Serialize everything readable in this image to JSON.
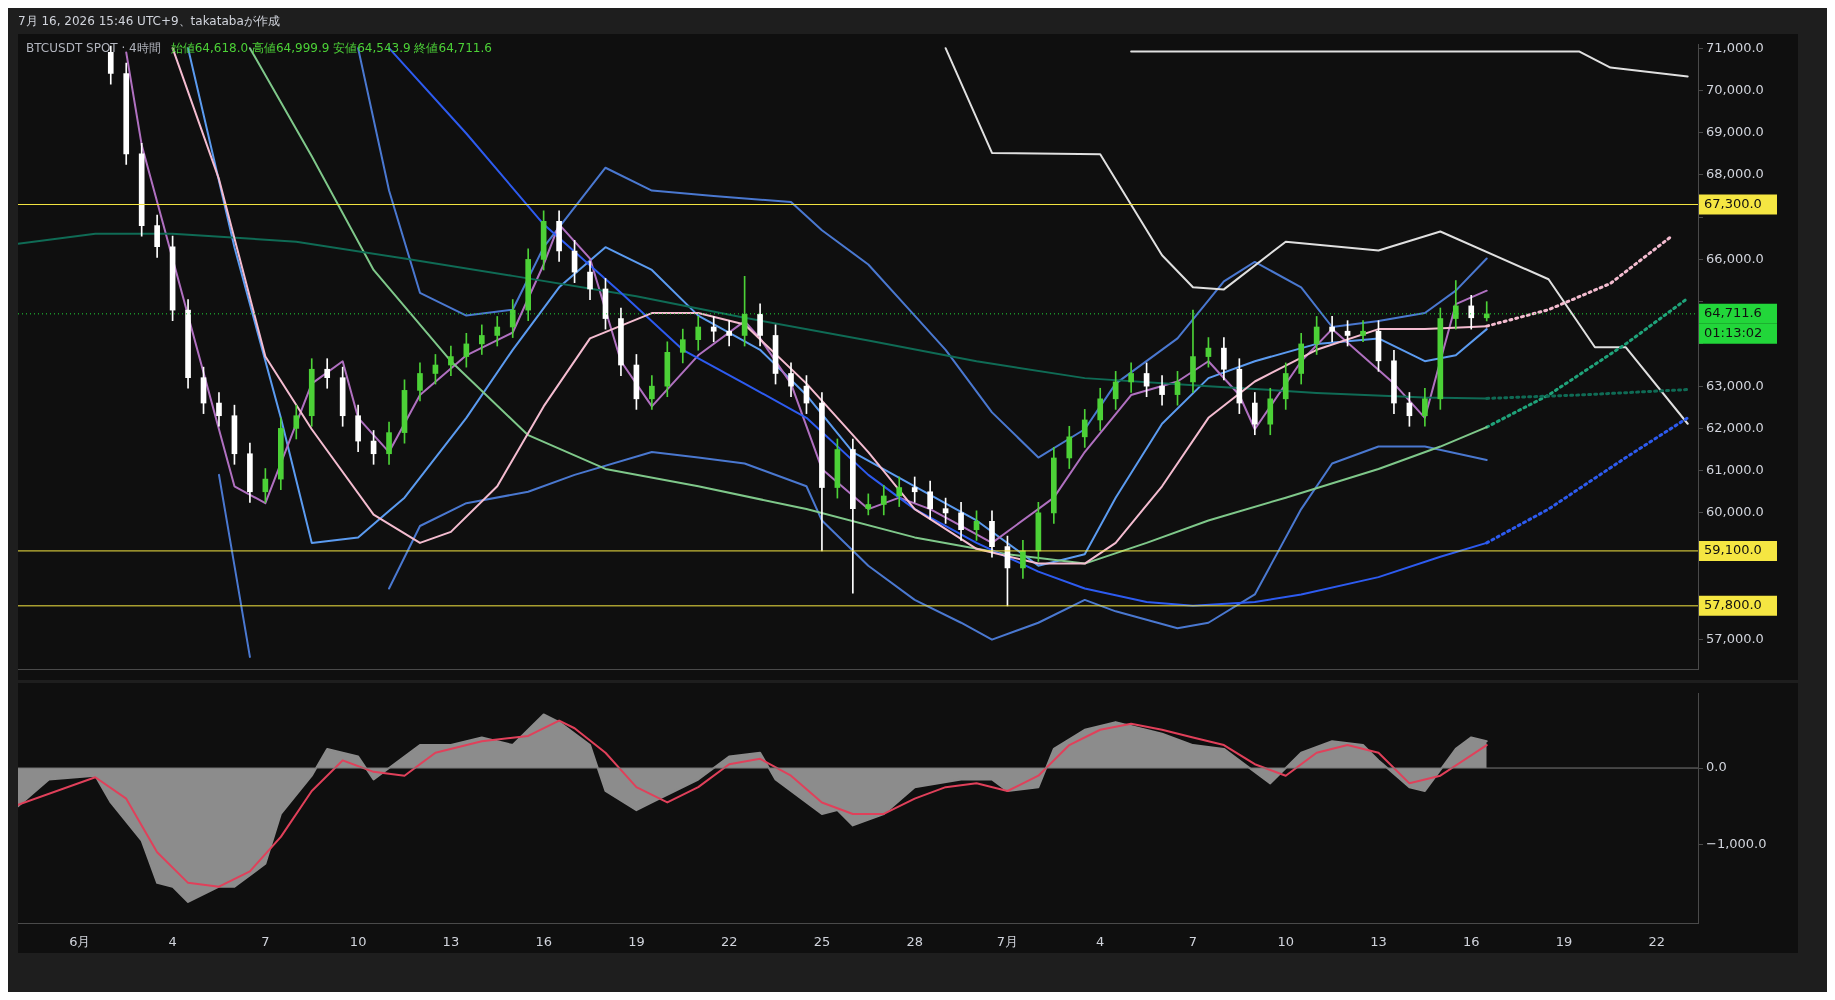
{
  "chart_data": [
    {
      "type": "candlestick",
      "title": "BTCUSDT SPOT · 4時間",
      "subtitle": "始値64,618.0 高値64,999.9 安値64,543.9 終値64,711.6",
      "annotations": [
        "7月 16, 2026 15:46 UTC+9、takatabaが作成",
        "01:13:02"
      ],
      "x": [
        "2026-06-02T00:00",
        "2026-06-02T12:00",
        "2026-06-03T00:00",
        "2026-06-03T12:00",
        "2026-06-04T00:00",
        "2026-06-04T12:00",
        "2026-06-05T00:00",
        "2026-06-05T12:00",
        "2026-06-06T00:00",
        "2026-06-06T12:00",
        "2026-06-07T00:00",
        "2026-06-07T12:00",
        "2026-06-08T00:00",
        "2026-06-08T12:00",
        "2026-06-09T00:00",
        "2026-06-09T12:00",
        "2026-06-10T00:00",
        "2026-06-10T12:00",
        "2026-06-11T00:00",
        "2026-06-11T12:00",
        "2026-06-12T00:00",
        "2026-06-12T12:00",
        "2026-06-13T00:00",
        "2026-06-13T12:00",
        "2026-06-14T00:00",
        "2026-06-14T12:00",
        "2026-06-15T00:00",
        "2026-06-15T12:00",
        "2026-06-16T00:00",
        "2026-06-16T12:00",
        "2026-06-17T00:00",
        "2026-06-17T12:00",
        "2026-06-18T00:00",
        "2026-06-18T12:00",
        "2026-06-19T00:00",
        "2026-06-19T12:00",
        "2026-06-20T00:00",
        "2026-06-20T12:00",
        "2026-06-21T00:00",
        "2026-06-21T12:00",
        "2026-06-22T00:00",
        "2026-06-22T12:00",
        "2026-06-23T00:00",
        "2026-06-23T12:00",
        "2026-06-24T00:00",
        "2026-06-24T12:00",
        "2026-06-25T00:00",
        "2026-06-25T12:00",
        "2026-06-26T00:00",
        "2026-06-26T12:00",
        "2026-06-27T00:00",
        "2026-06-27T12:00",
        "2026-06-28T00:00",
        "2026-06-28T12:00",
        "2026-06-29T00:00",
        "2026-06-29T12:00",
        "2026-06-30T00:00",
        "2026-06-30T12:00",
        "2026-07-01T00:00",
        "2026-07-01T12:00",
        "2026-07-02T00:00",
        "2026-07-02T12:00",
        "2026-07-03T00:00",
        "2026-07-03T12:00",
        "2026-07-04T00:00",
        "2026-07-04T12:00",
        "2026-07-05T00:00",
        "2026-07-05T12:00",
        "2026-07-06T00:00",
        "2026-07-06T12:00",
        "2026-07-07T00:00",
        "2026-07-07T12:00",
        "2026-07-08T00:00",
        "2026-07-08T12:00",
        "2026-07-09T00:00",
        "2026-07-09T12:00",
        "2026-07-10T00:00",
        "2026-07-10T12:00",
        "2026-07-11T00:00",
        "2026-07-11T12:00",
        "2026-07-12T00:00",
        "2026-07-12T12:00",
        "2026-07-13T00:00",
        "2026-07-13T12:00",
        "2026-07-14T00:00",
        "2026-07-14T12:00",
        "2026-07-15T00:00",
        "2026-07-15T12:00",
        "2026-07-16T00:00",
        "2026-07-16T12:00"
      ],
      "ohlc": [
        [
          70900,
          71050,
          70150,
          70400
        ],
        [
          70400,
          70650,
          68250,
          68500
        ],
        [
          68500,
          68750,
          66550,
          66800
        ],
        [
          66800,
          67050,
          66050,
          66300
        ],
        [
          66300,
          66550,
          64550,
          64800
        ],
        [
          64800,
          65050,
          62950,
          63200
        ],
        [
          63200,
          63450,
          62350,
          62600
        ],
        [
          62600,
          62850,
          62050,
          62300
        ],
        [
          62300,
          62550,
          61150,
          61400
        ],
        [
          61400,
          61650,
          60250,
          60500
        ],
        [
          60500,
          61050,
          60250,
          60800
        ],
        [
          60800,
          62250,
          60550,
          62000
        ],
        [
          62000,
          62550,
          61750,
          62300
        ],
        [
          62300,
          63650,
          62050,
          63400
        ],
        [
          63400,
          63650,
          62950,
          63200
        ],
        [
          63200,
          63450,
          62050,
          62300
        ],
        [
          62300,
          62550,
          61450,
          61700
        ],
        [
          61700,
          61950,
          61150,
          61400
        ],
        [
          61400,
          62150,
          61150,
          61900
        ],
        [
          61900,
          63150,
          61650,
          62900
        ],
        [
          62900,
          63550,
          62650,
          63300
        ],
        [
          63300,
          63750,
          63050,
          63500
        ],
        [
          63500,
          63950,
          63250,
          63700
        ],
        [
          63700,
          64250,
          63450,
          64000
        ],
        [
          64000,
          64450,
          63750,
          64200
        ],
        [
          64200,
          64650,
          63950,
          64400
        ],
        [
          64400,
          65050,
          64150,
          64800
        ],
        [
          64800,
          66250,
          64550,
          66000
        ],
        [
          66000,
          67150,
          65750,
          66900
        ],
        [
          66900,
          67150,
          65950,
          66200
        ],
        [
          66200,
          66450,
          65450,
          65700
        ],
        [
          65700,
          65950,
          65050,
          65300
        ],
        [
          65300,
          65550,
          64350,
          64600
        ],
        [
          64600,
          64850,
          63250,
          63500
        ],
        [
          63500,
          63750,
          62450,
          62700
        ],
        [
          62700,
          63250,
          62450,
          63000
        ],
        [
          63000,
          64050,
          62750,
          63800
        ],
        [
          63800,
          64350,
          63550,
          64100
        ],
        [
          64100,
          64650,
          63850,
          64400
        ],
        [
          64400,
          64650,
          64050,
          64300
        ],
        [
          64300,
          64550,
          63950,
          64200
        ],
        [
          64200,
          65600,
          63950,
          64700
        ],
        [
          64700,
          64950,
          63950,
          64200
        ],
        [
          64200,
          64450,
          63050,
          63300
        ],
        [
          63300,
          63550,
          62750,
          63000
        ],
        [
          63000,
          63250,
          62350,
          62600
        ],
        [
          62600,
          62850,
          59100,
          60600
        ],
        [
          60600,
          61750,
          60350,
          61500
        ],
        [
          61500,
          61750,
          58100,
          60100
        ],
        [
          60100,
          60450,
          59950,
          60200
        ],
        [
          60200,
          60650,
          59950,
          60400
        ],
        [
          60400,
          60850,
          60150,
          60600
        ],
        [
          60600,
          60850,
          60250,
          60500
        ],
        [
          60500,
          60750,
          59850,
          60100
        ],
        [
          60100,
          60350,
          59750,
          60000
        ],
        [
          60000,
          60250,
          59350,
          59600
        ],
        [
          59600,
          60050,
          59350,
          59800
        ],
        [
          59800,
          60050,
          58950,
          59200
        ],
        [
          59200,
          59450,
          57800,
          58700
        ],
        [
          58700,
          59350,
          58450,
          59100
        ],
        [
          59100,
          60250,
          58850,
          60000
        ],
        [
          60000,
          61550,
          59750,
          61300
        ],
        [
          61300,
          62050,
          61050,
          61800
        ],
        [
          61800,
          62450,
          61550,
          62200
        ],
        [
          62200,
          62950,
          61950,
          62700
        ],
        [
          62700,
          63350,
          62450,
          63100
        ],
        [
          63100,
          63550,
          62850,
          63300
        ],
        [
          63300,
          63550,
          62750,
          63000
        ],
        [
          63000,
          63250,
          62550,
          62800
        ],
        [
          62800,
          63350,
          62550,
          63100
        ],
        [
          63100,
          64800,
          62850,
          63700
        ],
        [
          63700,
          64150,
          63450,
          63900
        ],
        [
          63900,
          64150,
          63150,
          63400
        ],
        [
          63400,
          63650,
          62350,
          62600
        ],
        [
          62600,
          62850,
          61850,
          62100
        ],
        [
          62100,
          62950,
          61850,
          62700
        ],
        [
          62700,
          63550,
          62450,
          63300
        ],
        [
          63300,
          64250,
          63050,
          64000
        ],
        [
          64000,
          64650,
          63750,
          64400
        ],
        [
          64400,
          64650,
          64050,
          64300
        ],
        [
          64300,
          64550,
          63950,
          64200
        ],
        [
          64200,
          64550,
          64050,
          64300
        ],
        [
          64300,
          64550,
          63350,
          63600
        ],
        [
          63600,
          63850,
          62350,
          62600
        ],
        [
          62600,
          62850,
          62050,
          62300
        ],
        [
          62300,
          62950,
          62050,
          62700
        ],
        [
          62700,
          64850,
          62450,
          64600
        ],
        [
          64600,
          65500,
          64350,
          64900
        ],
        [
          64900,
          65150,
          64350,
          64618
        ],
        [
          64618,
          64999.9,
          64543.9,
          64711.6
        ]
      ],
      "colors": [
        "#ffffff",
        "#ffffff",
        "#ffffff",
        "#ffffff",
        "#ffffff",
        "#ffffff",
        "#ffffff",
        "#ffffff",
        "#ffffff",
        "#ffffff",
        "#4cd137",
        "#4cd137",
        "#4cd137",
        "#4cd137",
        "#ffffff",
        "#ffffff",
        "#ffffff",
        "#ffffff",
        "#4cd137",
        "#4cd137",
        "#4cd137",
        "#4cd137",
        "#4cd137",
        "#4cd137",
        "#4cd137",
        "#4cd137",
        "#4cd137",
        "#4cd137",
        "#4cd137",
        "#ffffff",
        "#ffffff",
        "#ffffff",
        "#ffffff",
        "#ffffff",
        "#ffffff",
        "#4cd137",
        "#4cd137",
        "#4cd137",
        "#4cd137",
        "#ffffff",
        "#ffffff",
        "#4cd137",
        "#ffffff",
        "#ffffff",
        "#ffffff",
        "#ffffff",
        "#ffffff",
        "#4cd137",
        "#ffffff",
        "#4cd137",
        "#4cd137",
        "#4cd137",
        "#ffffff",
        "#ffffff",
        "#ffffff",
        "#ffffff",
        "#4cd137",
        "#ffffff",
        "#ffffff",
        "#4cd137",
        "#4cd137",
        "#4cd137",
        "#4cd137",
        "#4cd137",
        "#4cd137",
        "#4cd137",
        "#4cd137",
        "#ffffff",
        "#ffffff",
        "#4cd137",
        "#4cd137",
        "#4cd137",
        "#ffffff",
        "#ffffff",
        "#ffffff",
        "#4cd137",
        "#4cd137",
        "#4cd137",
        "#4cd137",
        "#ffffff",
        "#ffffff",
        "#4cd137",
        "#ffffff",
        "#ffffff",
        "#ffffff",
        "#4cd137",
        "#4cd137",
        "#4cd137",
        "#ffffff",
        "#4cd137"
      ],
      "series": [
        {
          "type": "line",
          "color": "#f4bcd0",
          "x": [
            "2026-06-04T00:00",
            "2026-06-05T12:00",
            "2026-06-07T00:00",
            "2026-06-08T12:00",
            "2026-06-10T12:00",
            "2026-06-12T00:00",
            "2026-06-13T00:00",
            "2026-06-14T12:00",
            "2026-06-16T00:00",
            "2026-06-17T12:00",
            "2026-06-19T12:00",
            "2026-06-21T00:00",
            "2026-06-22T12:00",
            "2026-06-24T12:00",
            "2026-06-26T12:00",
            "2026-06-28T00:00",
            "2026-06-30T00:00",
            "2026-07-02T00:00",
            "2026-07-03T12:00",
            "2026-07-04T12:00",
            "2026-07-06T00:00",
            "2026-07-07T12:00",
            "2026-07-09T00:00",
            "2026-07-11T00:00",
            "2026-07-13T00:00",
            "2026-07-14T12:00",
            "2026-07-16T00:00",
            "2026-07-16T12:00"
          ],
          "values": [
            71000,
            67900,
            63700,
            61980,
            59960,
            59290,
            59550,
            60630,
            62520,
            64130,
            64730,
            64730,
            64460,
            63060,
            61440,
            60090,
            59150,
            58800,
            58800,
            59290,
            60630,
            62250,
            63110,
            63860,
            64350,
            64350,
            64400,
            64420
          ]
        },
        {
          "type": "line",
          "color": "#f4bcd0",
          "line_style": "dotted",
          "x": [
            "2026-07-16T12:00",
            "2026-07-18T12:00",
            "2026-07-20T12:00",
            "2026-07-22T12:00"
          ],
          "values": [
            64420,
            64810,
            65430,
            66560
          ]
        },
        {
          "type": "line",
          "color": "#2d5bf0",
          "x": [
            "2026-06-11T00:00",
            "2026-06-13T12:00",
            "2026-06-16T00:00",
            "2026-06-18T12:00",
            "2026-06-20T12:00",
            "2026-06-22T12:00",
            "2026-06-24T12:00",
            "2026-06-26T12:00",
            "2026-06-28T00:00",
            "2026-06-30T00:00",
            "2026-07-02T00:00",
            "2026-07-03T12:00",
            "2026-07-05T12:00",
            "2026-07-07T00:00",
            "2026-07-09T00:00",
            "2026-07-10T12:00",
            "2026-07-13T00:00",
            "2026-07-15T00:00",
            "2026-07-16T12:00"
          ],
          "values": [
            71000,
            68980,
            66830,
            65210,
            63860,
            63060,
            62250,
            60900,
            60090,
            59290,
            58610,
            58210,
            57890,
            57800,
            57890,
            58070,
            58480,
            58960,
            59290
          ]
        },
        {
          "type": "line",
          "color": "#2d5bf0",
          "line_style": "dotted",
          "x": [
            "2026-07-16T12:00",
            "2026-07-18T12:00",
            "2026-07-21T00:00",
            "2026-07-23T00:00"
          ],
          "values": [
            59290,
            60090,
            61310,
            62250
          ]
        },
        {
          "type": "line",
          "color": "#0f6b55",
          "x": [
            "2026-05-30T00:00",
            "2026-06-01T12:00",
            "2026-06-04T00:00",
            "2026-06-08T00:00",
            "2026-06-11T12:00",
            "2026-06-15T00:00",
            "2026-06-19T00:00",
            "2026-06-22T12:00",
            "2026-06-26T12:00",
            "2026-06-30T00:00",
            "2026-07-03T12:00",
            "2026-07-07T12:00",
            "2026-07-11T00:00",
            "2026-07-14T12:00",
            "2026-07-16T12:00"
          ],
          "values": [
            66370,
            66610,
            66610,
            66420,
            66020,
            65610,
            65130,
            64620,
            64080,
            63590,
            63190,
            63000,
            62840,
            62730,
            62710
          ]
        },
        {
          "type": "line",
          "color": "#0f6b55",
          "line_style": "dotted",
          "x": [
            "2026-07-16T12:00",
            "2026-07-19T12:00",
            "2026-07-23T00:00"
          ],
          "values": [
            62710,
            62790,
            62920
          ]
        },
        {
          "type": "line",
          "color": "#7fc88a",
          "x": [
            "2026-06-06T12:00",
            "2026-06-08T12:00",
            "2026-06-10T12:00",
            "2026-06-13T00:00",
            "2026-06-15T12:00",
            "2026-06-18T00:00",
            "2026-06-21T00:00",
            "2026-06-24T12:00",
            "2026-06-28T00:00",
            "2026-07-01T00:00",
            "2026-07-03T12:00",
            "2026-07-05T12:00",
            "2026-07-07T12:00",
            "2026-07-10T00:00",
            "2026-07-13T00:00",
            "2026-07-15T00:00",
            "2026-07-16T12:00"
          ],
          "values": [
            71000,
            68440,
            65750,
            63590,
            61840,
            61040,
            60630,
            60090,
            59420,
            59020,
            58800,
            59290,
            59820,
            60360,
            61040,
            61570,
            62030
          ]
        },
        {
          "type": "line",
          "color": "#1fa37a",
          "line_style": "dotted",
          "x": [
            "2026-07-16T12:00",
            "2026-07-18T12:00",
            "2026-07-21T00:00",
            "2026-07-23T00:00"
          ],
          "values": [
            62030,
            62790,
            64000,
            65080
          ]
        },
        {
          "type": "line",
          "color": "#e0e0e0",
          "x": [
            "2026-06-29T00:00",
            "2026-06-30T12:00",
            "2026-07-04T00:00",
            "2026-07-06T00:00",
            "2026-07-07T00:00",
            "2026-07-08T00:00",
            "2026-07-10T00:00",
            "2026-07-13T00:00",
            "2026-07-15T00:00",
            "2026-07-18T12:00",
            "2026-07-20T00:00",
            "2026-07-21T00:00",
            "2026-07-23T00:00"
          ],
          "values": [
            71000,
            68520,
            68490,
            66100,
            65340,
            65290,
            66420,
            66210,
            66660,
            65530,
            63920,
            63920,
            62110
          ]
        },
        {
          "type": "line",
          "color": "#e0e0e0",
          "x": [
            "2026-07-05T00:00",
            "2026-07-19T12:00",
            "2026-07-20T12:00",
            "2026-07-23T00:00"
          ],
          "values": [
            70920,
            70920,
            70540,
            70330
          ]
        },
        {
          "type": "line",
          "color": "#b070c0",
          "x": [
            "2026-06-02T12:00",
            "2026-06-03T00:00",
            "2026-06-06T00:00",
            "2026-06-07T00:00",
            "2026-06-08T12:00",
            "2026-06-09T12:00",
            "2026-06-10T00:00",
            "2026-06-11T00:00",
            "2026-06-12T00:00",
            "2026-06-13T12:00",
            "2026-06-15T00:00",
            "2026-06-16T00:00",
            "2026-06-16T12:00",
            "2026-06-17T12:00",
            "2026-06-18T12:00",
            "2026-06-19T12:00",
            "2026-06-21T00:00",
            "2026-06-22T12:00",
            "2026-06-23T00:00",
            "2026-06-24T00:00",
            "2026-06-25T00:00",
            "2026-06-26T12:00",
            "2026-06-27T12:00",
            "2026-06-28T12:00",
            "2026-06-29T12:00",
            "2026-06-30T12:00",
            "2026-07-02T12:00",
            "2026-07-03T12:00",
            "2026-07-05T00:00",
            "2026-07-06T12:00",
            "2026-07-07T12:00",
            "2026-07-08T12:00",
            "2026-07-09T00:00",
            "2026-07-10T12:00",
            "2026-07-11T12:00",
            "2026-07-13T12:00",
            "2026-07-14T12:00",
            "2026-07-15T12:00",
            "2026-07-16T12:00"
          ],
          "values": [
            70900,
            68710,
            60630,
            60230,
            63060,
            63590,
            62250,
            61440,
            62790,
            63730,
            64270,
            65880,
            66830,
            66020,
            63590,
            62520,
            63730,
            64540,
            64130,
            63060,
            61040,
            60090,
            60360,
            60090,
            59690,
            59290,
            60360,
            61440,
            62790,
            63110,
            63590,
            62790,
            61980,
            63590,
            64350,
            63060,
            62250,
            64940,
            65260
          ]
        },
        {
          "type": "line",
          "color": "#5b9bf0",
          "x": [
            "2026-06-04T12:00",
            "2026-06-06T00:00",
            "2026-06-07T12:00",
            "2026-06-08T12:00",
            "2026-06-10T00:00",
            "2026-06-11T12:00",
            "2026-06-13T12:00",
            "2026-06-15T00:00",
            "2026-06-16T12:00",
            "2026-06-18T00:00",
            "2026-06-19T12:00",
            "2026-06-21T00:00",
            "2026-06-23T00:00",
            "2026-06-24T12:00",
            "2026-06-26T00:00",
            "2026-06-28T00:00",
            "2026-06-30T00:00",
            "2026-07-02T00:00",
            "2026-07-03T12:00",
            "2026-07-04T12:00",
            "2026-07-06T00:00",
            "2026-07-07T12:00",
            "2026-07-09T00:00",
            "2026-07-11T00:00",
            "2026-07-13T00:00",
            "2026-07-14T12:00",
            "2026-07-15T12:00",
            "2026-07-16T12:00"
          ],
          "values": [
            71000,
            66290,
            62250,
            59290,
            59420,
            60360,
            62250,
            63860,
            65340,
            66290,
            65750,
            64670,
            63860,
            62790,
            61440,
            60630,
            59820,
            58750,
            59020,
            60360,
            62110,
            63190,
            63590,
            64000,
            64130,
            63590,
            63730,
            64350
          ]
        },
        {
          "type": "line",
          "color": "#4a78d0",
          "x": [
            "2026-06-10T00:00",
            "2026-06-11T00:00",
            "2026-06-12T00:00",
            "2026-06-13T12:00",
            "2026-06-15T00:00",
            "2026-06-16T00:00",
            "2026-06-18T00:00",
            "2026-06-19T12:00",
            "2026-06-21T12:00",
            "2026-06-24T00:00",
            "2026-06-25T00:00",
            "2026-06-26T12:00",
            "2026-06-28T00:00",
            "2026-06-29T00:00",
            "2026-06-30T12:00",
            "2026-07-02T00:00",
            "2026-07-03T12:00",
            "2026-07-04T12:00",
            "2026-07-06T12:00",
            "2026-07-08T00:00",
            "2026-07-09T00:00",
            "2026-07-10T12:00",
            "2026-07-11T12:00",
            "2026-07-13T00:00",
            "2026-07-14T12:00",
            "2026-07-15T12:00",
            "2026-07-16T12:00"
          ],
          "values": [
            71000,
            67630,
            65210,
            64670,
            64810,
            66290,
            68170,
            67630,
            67500,
            67360,
            66690,
            65880,
            64670,
            63860,
            62380,
            61310,
            61980,
            63060,
            64130,
            65480,
            65940,
            65340,
            64400,
            64540,
            64730,
            65260,
            66020
          ]
        },
        {
          "type": "line",
          "color": "#4a78d0",
          "x": [
            "2026-06-05T12:00",
            "2026-06-06T00:00",
            "2026-06-06T12:00",
            "2026-06-09T00:00",
            "2026-06-11T00:00",
            "2026-06-12T00:00",
            "2026-06-13T12:00",
            "2026-06-15T12:00",
            "2026-06-17T00:00",
            "2026-06-19T12:00",
            "2026-06-21T00:00",
            "2026-06-22T12:00",
            "2026-06-24T12:00",
            "2026-06-25T00:00",
            "2026-06-26T12:00",
            "2026-06-28T00:00",
            "2026-06-29T12:00",
            "2026-06-30T12:00",
            "2026-07-02T00:00",
            "2026-07-03T12:00",
            "2026-07-04T12:00",
            "2026-07-06T12:00",
            "2026-07-07T12:00",
            "2026-07-09T00:00",
            "2026-07-10T12:00",
            "2026-07-11T12:00",
            "2026-07-13T00:00",
            "2026-07-14T12:00",
            "2026-07-16T12:00"
          ],
          "values": [
            60900,
            58750,
            56590,
            null,
            58210,
            59690,
            60230,
            60500,
            60900,
            61440,
            61310,
            61170,
            60630,
            59820,
            58750,
            57940,
            57400,
            57000,
            57400,
            57940,
            57670,
            57270,
            57400,
            58070,
            60090,
            61170,
            61570,
            61570,
            61250
          ]
        }
      ],
      "ref_lines": [
        {
          "axis": "y",
          "value": 67300,
          "label": "67,300.0",
          "color": "#f5e642"
        },
        {
          "axis": "y",
          "value": 59100,
          "label": "59,100.0",
          "color": "#f5e642"
        },
        {
          "axis": "y",
          "value": 57800,
          "label": "57,800.0",
          "color": "#f5e642"
        },
        {
          "axis": "y",
          "value": 64711.6,
          "label": "64,711.6",
          "color": "#22d63a",
          "line_style": "dotted"
        }
      ],
      "xlim": [
        "2026-05-30T00:00",
        "2026-07-23T08:00"
      ],
      "ylim": [
        56300,
        71080
      ],
      "yticks": [
        {
          "value": 57000,
          "label": "57,000.0"
        },
        {
          "value": 58000,
          "label": null
        },
        {
          "value": 59000,
          "label": null
        },
        {
          "value": 60000,
          "label": "60,000.0"
        },
        {
          "value": 61000,
          "label": "61,000.0"
        },
        {
          "value": 62000,
          "label": "62,000.0"
        },
        {
          "value": 63000,
          "label": "63,000.0"
        },
        {
          "value": 64000,
          "label": null
        },
        {
          "value": 65000,
          "label": null
        },
        {
          "value": 66000,
          "label": "66,000.0"
        },
        {
          "value": 67000,
          "label": null
        },
        {
          "value": 68000,
          "label": "68,000.0"
        },
        {
          "value": 69000,
          "label": "69,000.0"
        },
        {
          "value": 70000,
          "label": "70,000.0"
        },
        {
          "value": 71000,
          "label": "71,000.0"
        }
      ],
      "tick_labels": "y",
      "grid": false,
      "legend": false
    },
    {
      "type": "area",
      "series": [
        {
          "type": "area",
          "color": "#8c8c8c",
          "x": [
            "2026-05-30T00:00",
            "2026-05-31T00:00",
            "2026-06-01T12:00",
            "2026-06-02T00:00",
            "2026-06-03T00:00",
            "2026-06-03T12:00",
            "2026-06-04T00:00",
            "2026-06-04T12:00",
            "2026-06-05T12:00",
            "2026-06-06T00:00",
            "2026-06-07T00:00",
            "2026-06-07T12:00",
            "2026-06-08T12:00",
            "2026-06-09T00:00",
            "2026-06-10T00:00",
            "2026-06-10T12:00",
            "2026-06-11T00:00",
            "2026-06-12T00:00",
            "2026-06-13T00:00",
            "2026-06-14T00:00",
            "2026-06-15T00:00",
            "2026-06-16T00:00",
            "2026-06-16T12:00",
            "2026-06-17T12:00",
            "2026-06-18T00:00",
            "2026-06-19T00:00",
            "2026-06-19T12:00",
            "2026-06-21T00:00",
            "2026-06-22T00:00",
            "2026-06-23T00:00",
            "2026-06-23T12:00",
            "2026-06-25T00:00",
            "2026-06-25T12:00",
            "2026-06-26T00:00",
            "2026-06-27T00:00",
            "2026-06-28T00:00",
            "2026-06-29T12:00",
            "2026-06-30T12:00",
            "2026-07-01T00:00",
            "2026-07-02T00:00",
            "2026-07-02T12:00",
            "2026-07-03T12:00",
            "2026-07-04T12:00",
            "2026-07-06T00:00",
            "2026-07-07T00:00",
            "2026-07-08T00:00",
            "2026-07-09T00:00",
            "2026-07-09T12:00",
            "2026-07-10T12:00",
            "2026-07-11T12:00",
            "2026-07-12T12:00",
            "2026-07-13T00:00",
            "2026-07-14T00:00",
            "2026-07-14T12:00",
            "2026-07-15T12:00",
            "2026-07-16T00:00",
            "2026-07-16T12:00"
          ],
          "values": [
            -500,
            -150,
            -100,
            -450,
            -950,
            -1500,
            -1550,
            -1750,
            -1550,
            -1550,
            -1250,
            -600,
            -100,
            250,
            150,
            -150,
            0,
            300,
            300,
            400,
            300,
            700,
            600,
            300,
            -300,
            -550,
            -450,
            -150,
            150,
            200,
            -150,
            -600,
            -550,
            -750,
            -600,
            -250,
            -150,
            -150,
            -300,
            -250,
            250,
            500,
            600,
            450,
            300,
            250,
            -50,
            -200,
            200,
            350,
            300,
            100,
            -250,
            -300,
            250,
            400,
            350
          ]
        },
        {
          "type": "line",
          "color": "#e0405a",
          "x": [
            "2026-05-30T00:00",
            "2026-06-01T12:00",
            "2026-06-02T12:00",
            "2026-06-03T12:00",
            "2026-06-04T12:00",
            "2026-06-05T12:00",
            "2026-06-06T12:00",
            "2026-06-07T12:00",
            "2026-06-08T12:00",
            "2026-06-09T12:00",
            "2026-06-10T12:00",
            "2026-06-11T12:00",
            "2026-06-12T12:00",
            "2026-06-14T00:00",
            "2026-06-15T12:00",
            "2026-06-16T12:00",
            "2026-06-17T00:00",
            "2026-06-18T00:00",
            "2026-06-19T00:00",
            "2026-06-20T00:00",
            "2026-06-21T00:00",
            "2026-06-22T00:00",
            "2026-06-23T00:00",
            "2026-06-24T00:00",
            "2026-06-25T00:00",
            "2026-06-26T00:00",
            "2026-06-27T00:00",
            "2026-06-28T00:00",
            "2026-06-29T00:00",
            "2026-06-30T00:00",
            "2026-07-01T00:00",
            "2026-07-02T00:00",
            "2026-07-03T00:00",
            "2026-07-04T00:00",
            "2026-07-05T00:00",
            "2026-07-06T00:00",
            "2026-07-07T00:00",
            "2026-07-08T00:00",
            "2026-07-09T00:00",
            "2026-07-10T00:00",
            "2026-07-11T00:00",
            "2026-07-12T00:00",
            "2026-07-13T00:00",
            "2026-07-14T00:00",
            "2026-07-15T00:00",
            "2026-07-16T12:00"
          ],
          "values": [
            -480,
            -120,
            -400,
            -1100,
            -1500,
            -1550,
            -1350,
            -900,
            -300,
            100,
            -50,
            -100,
            200,
            350,
            420,
            620,
            520,
            200,
            -250,
            -450,
            -250,
            50,
            120,
            -100,
            -450,
            -600,
            -600,
            -400,
            -250,
            -200,
            -300,
            -100,
            300,
            500,
            580,
            500,
            400,
            300,
            50,
            -100,
            200,
            300,
            200,
            -200,
            -100,
            300
          ]
        }
      ],
      "ref_lines": [
        {
          "axis": "y",
          "value": 0,
          "color": "#787878"
        }
      ],
      "xlim": [
        "2026-05-30T00:00",
        "2026-07-23T08:00"
      ],
      "xticks": [
        {
          "value": "2026-06-01",
          "label": "6月"
        },
        {
          "value": "2026-06-04",
          "label": "4"
        },
        {
          "value": "2026-06-07",
          "label": "7"
        },
        {
          "value": "2026-06-10",
          "label": "10"
        },
        {
          "value": "2026-06-13",
          "label": "13"
        },
        {
          "value": "2026-06-16",
          "label": "16"
        },
        {
          "value": "2026-06-19",
          "label": "19"
        },
        {
          "value": "2026-06-22",
          "label": "22"
        },
        {
          "value": "2026-06-25",
          "label": "25"
        },
        {
          "value": "2026-06-28",
          "label": "28"
        },
        {
          "value": "2026-07-01",
          "label": "7月"
        },
        {
          "value": "2026-07-04",
          "label": "4"
        },
        {
          "value": "2026-07-07",
          "label": "7"
        },
        {
          "value": "2026-07-10",
          "label": "10"
        },
        {
          "value": "2026-07-13",
          "label": "13"
        },
        {
          "value": "2026-07-16",
          "label": "16"
        },
        {
          "value": "2026-07-19",
          "label": "19"
        },
        {
          "value": "2026-07-22",
          "label": "22"
        }
      ],
      "ylim": [
        -2030,
        970
      ],
      "yticks": [
        {
          "value": -1000,
          "label": "−1,000.0"
        },
        {
          "value": 0,
          "label": "0.0"
        }
      ],
      "grid": false,
      "legend": false
    }
  ]
}
